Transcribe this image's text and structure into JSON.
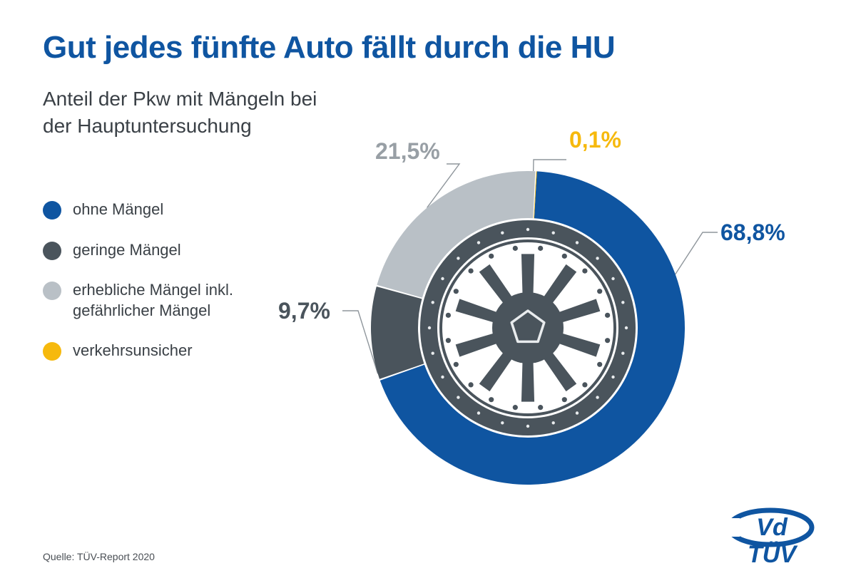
{
  "title": "Gut jedes fünfte Auto fällt durch die HU",
  "title_color": "#0f55a1",
  "subtitle": "Anteil der Pkw mit Mängeln bei\nder Hauptuntersuchung",
  "subtitle_color": "#3a4046",
  "background_color": "#ffffff",
  "legend": [
    {
      "label": "ohne Mängel",
      "color": "#0f55a1"
    },
    {
      "label": "geringe Mängel",
      "color": "#4a545c"
    },
    {
      "label": "erhebliche Mängel inkl. gefährlicher Mängel",
      "color": "#b9c0c6"
    },
    {
      "label": "verkehrsunsicher",
      "color": "#f6b90d"
    }
  ],
  "chart": {
    "type": "donut",
    "slices": [
      {
        "label": "ohne Mängel",
        "value": 68.8,
        "display": "68,8%",
        "color": "#0f55a1"
      },
      {
        "label": "geringe Mängel",
        "value": 9.7,
        "display": "9,7%",
        "color": "#4a545c"
      },
      {
        "label": "erhebliche Mängel",
        "value": 21.5,
        "display": "21,5%",
        "color": "#b9c0c6"
      },
      {
        "label": "verkehrsunsicher",
        "value": 0.1,
        "display": "0,1%",
        "color": "#f6b90d"
      }
    ],
    "start_angle_deg": 3,
    "rotation_direction": "clockwise",
    "outer_radius": 220,
    "inner_radius": 154,
    "slice_gap_deg": 0.6,
    "wheel_color": "#4a545c",
    "wheel_inner_bg": "#ffffff"
  },
  "callouts": {
    "s0": {
      "text": "68,8%",
      "color": "#0f55a1"
    },
    "s1": {
      "text": "9,7%",
      "color": "#4a545c"
    },
    "s2": {
      "text": "21,5%",
      "color": "#989fa5"
    },
    "s3": {
      "text": "0,1%",
      "color": "#f6b90d"
    }
  },
  "leader_line_color": "#8f969c",
  "leader_line_width": 1.4,
  "source": "Quelle: TÜV-Report 2020",
  "logo": {
    "vd_text": "Vd",
    "tuv_text": "TÜV",
    "color": "#0f55a1"
  }
}
